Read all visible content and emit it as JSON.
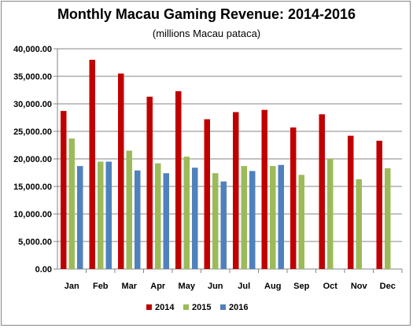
{
  "chart_data": {
    "type": "bar",
    "title": "Monthly Macau Gaming Revenue: 2014-2016",
    "subtitle": "(millions Macau pataca)",
    "categories": [
      "Jan",
      "Feb",
      "Mar",
      "Apr",
      "May",
      "Jun",
      "Jul",
      "Aug",
      "Sep",
      "Oct",
      "Nov",
      "Dec"
    ],
    "ylim": [
      0,
      40000
    ],
    "yticks": [
      "0.00",
      "5,000.00",
      "10,000.00",
      "15,000.00",
      "20,000.00",
      "25,000.00",
      "30,000.00",
      "35,000.00",
      "40,000.00"
    ],
    "grid": true,
    "legend_position": "bottom",
    "series": [
      {
        "name": "2014",
        "color": "#C00000",
        "values": [
          28700,
          38000,
          35500,
          31300,
          32300,
          27200,
          28500,
          28900,
          25700,
          28100,
          24200,
          23300
        ]
      },
      {
        "name": "2015",
        "color": "#9BBB59",
        "values": [
          23700,
          19500,
          21500,
          19200,
          20400,
          17400,
          18700,
          18700,
          17100,
          20000,
          16300,
          18300
        ]
      },
      {
        "name": "2016",
        "color": "#4F81BD",
        "values": [
          18700,
          19500,
          17900,
          17400,
          18400,
          15900,
          17800,
          18900,
          null,
          null,
          null,
          null
        ]
      }
    ]
  }
}
